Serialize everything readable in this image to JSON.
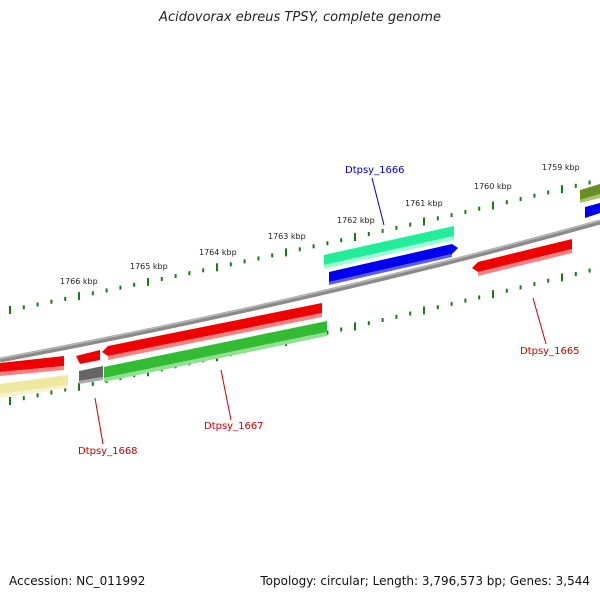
{
  "title": "Acidovorax ebreus TPSY, complete genome",
  "footer": {
    "accession": "Accession: NC_011992",
    "summary": "Topology: circular; Length: 3,796,573 bp; Genes: 3,544"
  },
  "scale_labels": [
    "1766 kbp",
    "1765 kbp",
    "1764 kbp",
    "1763 kbp",
    "1762 kbp",
    "1761 kbp",
    "1760 kbp",
    "1759 kbp"
  ],
  "gene_labels": {
    "g1666": "Dtpsy_1666",
    "g1665": "Dtpsy_1665",
    "g1667": "Dtpsy_1667",
    "g1668": "Dtpsy_1668"
  },
  "colors": {
    "backbone": "#8a8a8a",
    "tick": "#1a7a1a",
    "label_blue": "#0000cc",
    "label_red": "#cc0000",
    "cds_red": "#ee0000",
    "cds_green": "#33bb33",
    "cds_blue": "#0000ee",
    "cds_teal": "#22eeaa",
    "cds_olive": "#6b8e23",
    "cds_yellow": "#eee8a0",
    "cds_gray": "#666666"
  }
}
